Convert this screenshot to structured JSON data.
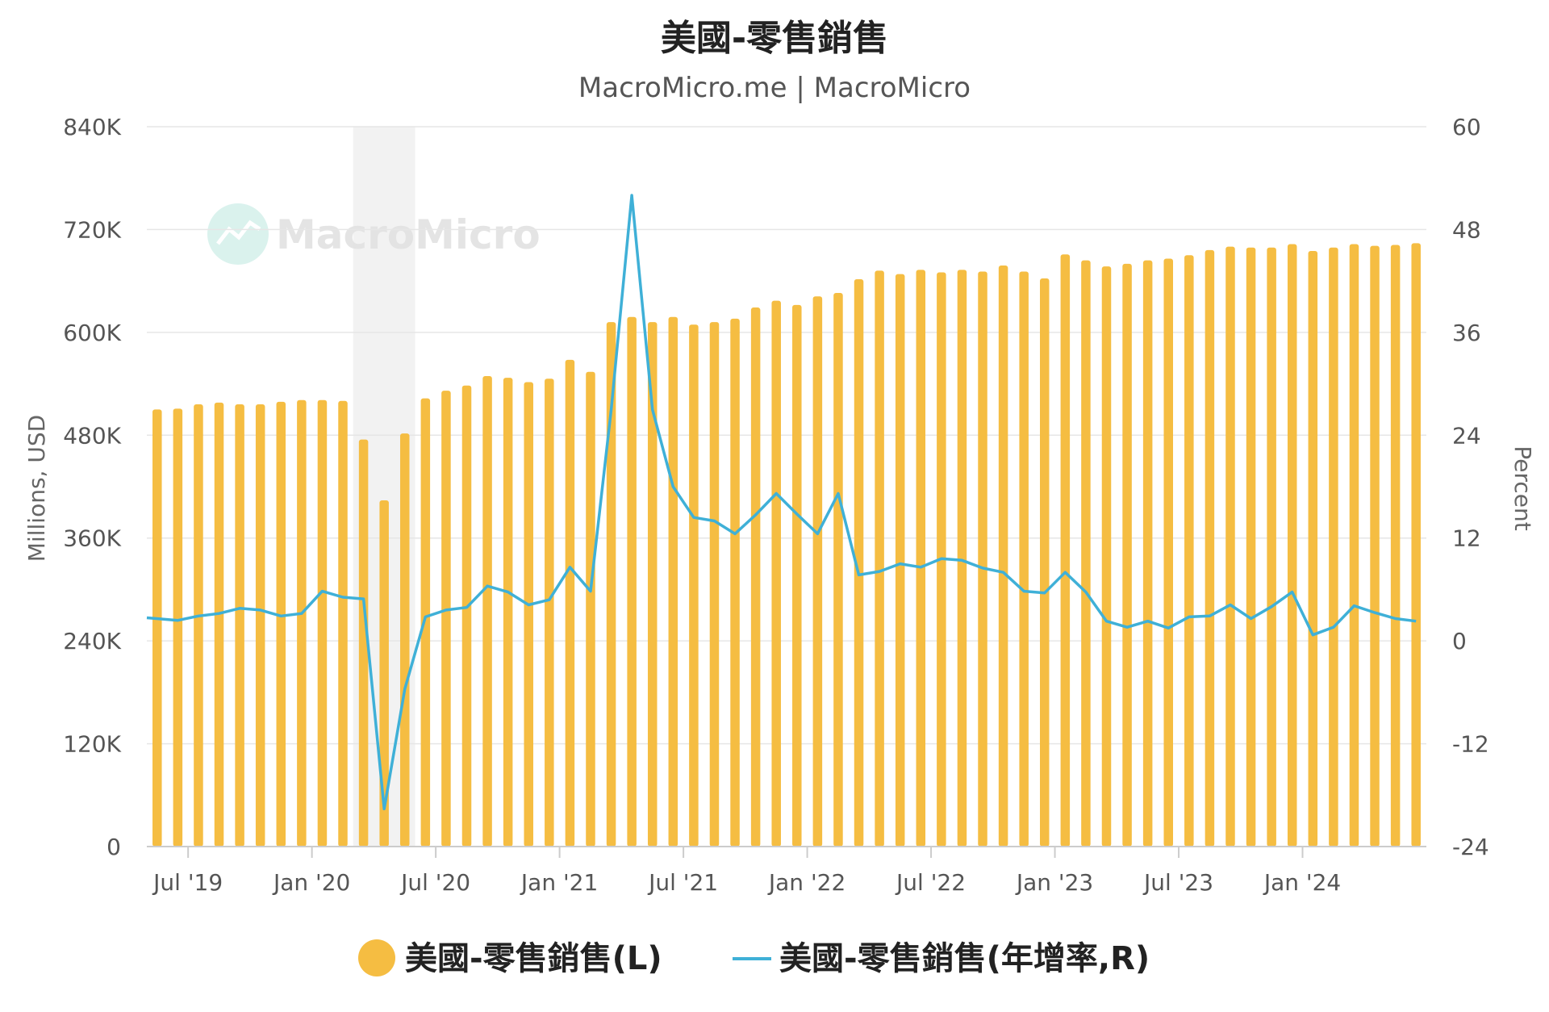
{
  "chart_data": {
    "type": "bar",
    "title": "美國-零售銷售",
    "subtitle": "MacroMicro.me | MacroMicro",
    "watermark": "MacroMicro",
    "left_axis": {
      "title": "Millions, USD",
      "min": 0,
      "max": 840000,
      "ticks": [
        0,
        120000,
        240000,
        360000,
        480000,
        600000,
        720000,
        840000
      ],
      "tick_labels": [
        "0",
        "120K",
        "240K",
        "360K",
        "480K",
        "600K",
        "720K",
        "840K"
      ]
    },
    "right_axis": {
      "title": "Percent",
      "min": -24,
      "max": 60,
      "ticks": [
        -24,
        -12,
        0,
        12,
        24,
        36,
        48,
        60
      ],
      "tick_labels": [
        "-24",
        "-12",
        "0",
        "12",
        "24",
        "36",
        "48",
        "60"
      ]
    },
    "x_axis": {
      "start": "2019-05",
      "end": "2024-06",
      "ticks": [
        "2019-07",
        "2020-01",
        "2020-07",
        "2021-01",
        "2021-07",
        "2022-01",
        "2022-07",
        "2023-01",
        "2023-07",
        "2024-01"
      ],
      "tick_labels": [
        "Jul '19",
        "Jan '20",
        "Jul '20",
        "Jan '21",
        "Jul '21",
        "Jan '22",
        "Jul '22",
        "Jan '23",
        "Jul '23",
        "Jan '24"
      ]
    },
    "recession_band": {
      "from": "2020-03",
      "to": "2020-05"
    },
    "grid": true,
    "legend_position": "bottom",
    "months": [
      "2019-05",
      "2019-06",
      "2019-07",
      "2019-08",
      "2019-09",
      "2019-10",
      "2019-11",
      "2019-12",
      "2020-01",
      "2020-02",
      "2020-03",
      "2020-04",
      "2020-05",
      "2020-06",
      "2020-07",
      "2020-08",
      "2020-09",
      "2020-10",
      "2020-11",
      "2020-12",
      "2021-01",
      "2021-02",
      "2021-03",
      "2021-04",
      "2021-05",
      "2021-06",
      "2021-07",
      "2021-08",
      "2021-09",
      "2021-10",
      "2021-11",
      "2021-12",
      "2022-01",
      "2022-02",
      "2022-03",
      "2022-04",
      "2022-05",
      "2022-06",
      "2022-07",
      "2022-08",
      "2022-09",
      "2022-10",
      "2022-11",
      "2022-12",
      "2023-01",
      "2023-02",
      "2023-03",
      "2023-04",
      "2023-05",
      "2023-06",
      "2023-07",
      "2023-08",
      "2023-09",
      "2023-10",
      "2023-11",
      "2023-12",
      "2024-01",
      "2024-02",
      "2024-03",
      "2024-04",
      "2024-05",
      "2024-06"
    ],
    "series": [
      {
        "name": "美國-零售銷售(L)",
        "type": "bar",
        "axis": "left",
        "color": "#f5bd42",
        "values": [
          510000,
          511000,
          516000,
          518000,
          516000,
          516000,
          519000,
          521000,
          521000,
          520000,
          475000,
          404000,
          482000,
          523000,
          532000,
          538000,
          549000,
          547000,
          542000,
          546000,
          568000,
          554000,
          612000,
          618000,
          612000,
          618000,
          609000,
          612000,
          616000,
          629000,
          637000,
          632000,
          642000,
          646000,
          662000,
          672000,
          668000,
          673000,
          670000,
          673000,
          671000,
          678000,
          671000,
          663000,
          691000,
          684000,
          677000,
          680000,
          684000,
          686000,
          690000,
          696000,
          700000,
          699000,
          699000,
          703000,
          695000,
          699000,
          703000,
          701000,
          702000,
          704000
        ]
      },
      {
        "name": "美國-零售銷售(年增率,R)",
        "type": "line",
        "axis": "right",
        "color": "#3fb0d7",
        "values": [
          2.7,
          2.4,
          2.9,
          3.2,
          3.8,
          3.6,
          2.9,
          3.2,
          5.8,
          5.1,
          4.9,
          -19.6,
          -5.6,
          2.8,
          3.6,
          3.9,
          6.4,
          5.7,
          4.2,
          4.8,
          8.6,
          5.8,
          27.0,
          52.0,
          27.0,
          18.0,
          14.4,
          14.0,
          12.5,
          14.7,
          17.2,
          14.8,
          12.5,
          17.2,
          7.7,
          8.1,
          9.0,
          8.6,
          9.6,
          9.4,
          8.5,
          8.0,
          5.8,
          5.6,
          8.0,
          5.7,
          2.3,
          1.6,
          2.3,
          1.5,
          2.8,
          2.9,
          4.2,
          2.6,
          4.0,
          5.7,
          0.7,
          1.6,
          4.1,
          3.3,
          2.6,
          2.3
        ]
      }
    ]
  }
}
